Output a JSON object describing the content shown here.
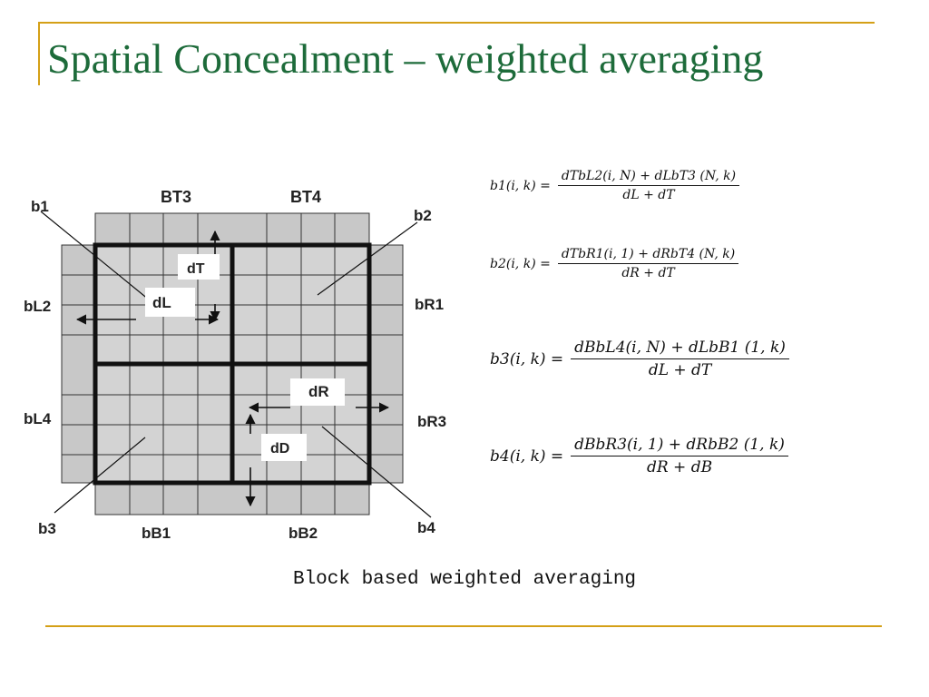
{
  "slide": {
    "title": "Spatial Concealment – weighted averaging",
    "caption": "Block based weighted averaging",
    "colors": {
      "title": "#1d6b3a",
      "accent": "#d4a017"
    }
  },
  "diagram": {
    "corner_labels": {
      "b1": "b1",
      "b2": "b2",
      "b3": "b3",
      "b4": "b4"
    },
    "neighbor_labels": {
      "top_left": "BT3",
      "top_right": "BT4",
      "left_upper": "bL2",
      "left_lower": "bL4",
      "right_upper": "bR1",
      "right_lower": "bR3",
      "bottom_left": "bB1",
      "bottom_right": "bB2"
    },
    "distance_labels": {
      "dT": "dT",
      "dL": "dL",
      "dR": "dR",
      "dD": "dD"
    }
  },
  "formulas": [
    {
      "lhs": "b1(i, k) =",
      "numerator": "dTbL2(i, N) + dLbT3 (N, k)",
      "denominator": "dL + dT"
    },
    {
      "lhs": "b2(i, k) =",
      "numerator": "dTbR1(i, 1) + dRbT4 (N, k)",
      "denominator": "dR + dT"
    },
    {
      "lhs": "b3(i, k) =",
      "numerator": "dBbL4(i, N) + dLbB1 (1, k)",
      "denominator": "dL + dT"
    },
    {
      "lhs": "b4(i, k) =",
      "numerator": "dBbR3(i, 1) + dRbB2 (1, k)",
      "denominator": "dR + dB"
    }
  ]
}
